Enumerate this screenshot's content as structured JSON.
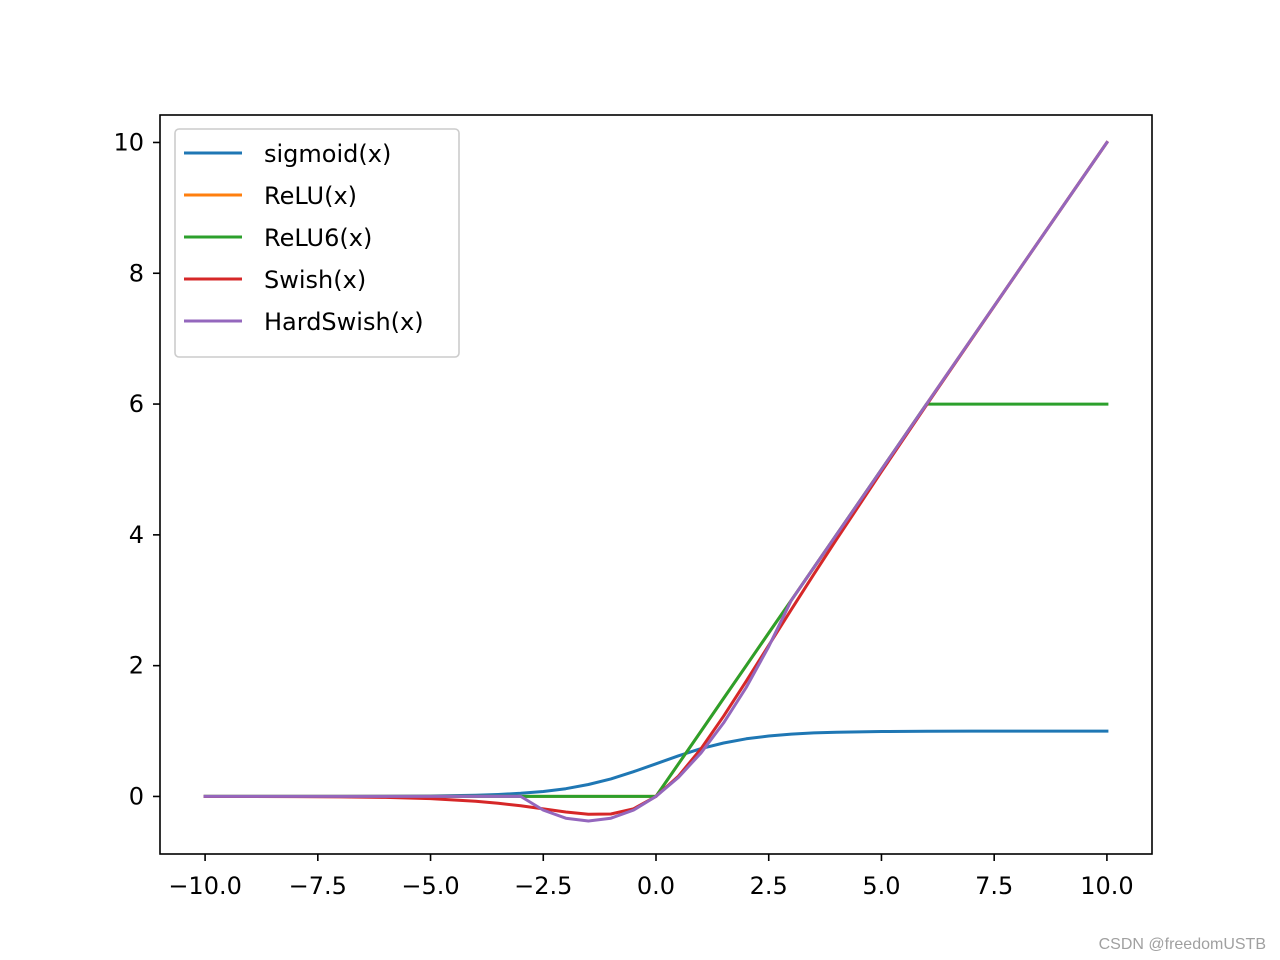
{
  "watermark": "CSDN @freedomUSTB",
  "chart_data": {
    "type": "line",
    "title": "",
    "xlabel": "",
    "ylabel": "",
    "xlim": [
      -11,
      11
    ],
    "ylim": [
      -0.88,
      10.42
    ],
    "grid": false,
    "legend_position": "upper-left",
    "x_ticks": [
      -10.0,
      -7.5,
      -5.0,
      -2.5,
      0.0,
      2.5,
      5.0,
      7.5,
      10.0
    ],
    "x_tick_labels": [
      "−10.0",
      "−7.5",
      "−5.0",
      "−2.5",
      "0.0",
      "2.5",
      "5.0",
      "7.5",
      "10.0"
    ],
    "y_ticks": [
      0,
      2,
      4,
      6,
      8,
      10
    ],
    "y_tick_labels": [
      "0",
      "2",
      "4",
      "6",
      "8",
      "10"
    ],
    "x": [
      -10,
      -9,
      -8,
      -7,
      -6,
      -5,
      -4,
      -3.5,
      -3,
      -2.5,
      -2,
      -1.5,
      -1,
      -0.5,
      0,
      0.5,
      1,
      1.5,
      2,
      2.5,
      3,
      3.5,
      4,
      5,
      6,
      7,
      8,
      9,
      10
    ],
    "series": [
      {
        "name": "sigmoid(x)",
        "color": "#1f77b4",
        "values": [
          4.54e-05,
          0.000123,
          0.000335,
          0.000911,
          0.00247,
          0.00669,
          0.018,
          0.0293,
          0.0474,
          0.0759,
          0.119,
          0.182,
          0.269,
          0.378,
          0.5,
          0.622,
          0.731,
          0.818,
          0.881,
          0.924,
          0.953,
          0.971,
          0.982,
          0.993,
          0.998,
          0.999,
          1.0,
          1.0,
          1.0
        ]
      },
      {
        "name": "ReLU(x)",
        "color": "#ff7f0e",
        "values": [
          0,
          0,
          0,
          0,
          0,
          0,
          0,
          0,
          0,
          0,
          0,
          0,
          0,
          0,
          0,
          0.5,
          1,
          1.5,
          2,
          2.5,
          3,
          3.5,
          4,
          5,
          6,
          7,
          8,
          9,
          10
        ]
      },
      {
        "name": "ReLU6(x)",
        "color": "#2ca02c",
        "values": [
          0,
          0,
          0,
          0,
          0,
          0,
          0,
          0,
          0,
          0,
          0,
          0,
          0,
          0,
          0,
          0.5,
          1,
          1.5,
          2,
          2.5,
          3,
          3.5,
          4,
          5,
          6,
          6,
          6,
          6,
          6
        ]
      },
      {
        "name": "Swish(x)",
        "color": "#d62728",
        "values": [
          -0.000454,
          -0.00111,
          -0.00268,
          -0.00638,
          -0.0148,
          -0.0335,
          -0.0719,
          -0.1025,
          -0.1423,
          -0.1897,
          -0.2384,
          -0.2736,
          -0.2689,
          -0.1888,
          0,
          0.3112,
          0.7311,
          1.2264,
          1.7616,
          2.3103,
          2.8577,
          3.3975,
          3.9281,
          4.9665,
          5.9852,
          6.9936,
          7.9973,
          8.9989,
          9.9995
        ]
      },
      {
        "name": "HardSwish(x)",
        "color": "#9467bd",
        "values": [
          0,
          0,
          0,
          0,
          0,
          0,
          0,
          0,
          0,
          -0.2083,
          -0.3333,
          -0.375,
          -0.3333,
          -0.2083,
          0,
          0.2917,
          0.6667,
          1.125,
          1.6667,
          2.2917,
          3,
          3.5,
          4,
          5,
          6,
          7,
          8,
          9,
          10
        ]
      }
    ]
  }
}
